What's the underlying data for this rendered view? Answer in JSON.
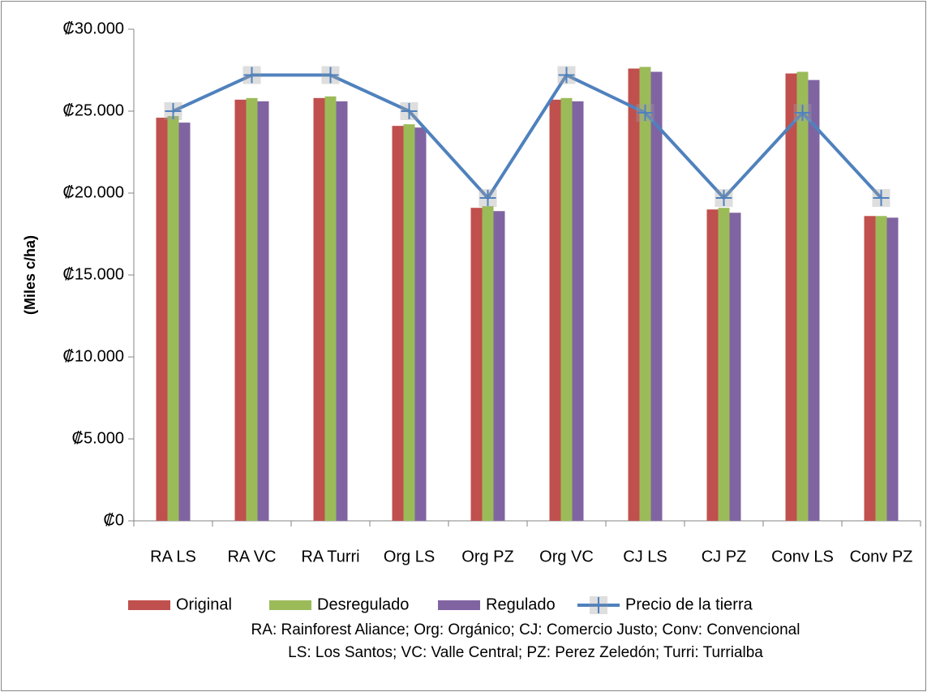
{
  "chart_data": {
    "type": "bar",
    "y_axis_label": "(Miles c/ha)",
    "categories": [
      "RA LS",
      "RA VC",
      "RA Turri",
      "Org LS",
      "Org PZ",
      "Org VC",
      "CJ LS",
      "CJ PZ",
      "Conv LS",
      "Conv PZ"
    ],
    "series": [
      {
        "name": "Original",
        "color": "#c0504d",
        "type": "bar",
        "values": [
          24600,
          25700,
          25800,
          24100,
          19100,
          25700,
          27600,
          19000,
          27300,
          18600
        ]
      },
      {
        "name": "Desregulado",
        "color": "#9bbb59",
        "type": "bar",
        "values": [
          24700,
          25800,
          25900,
          24200,
          19200,
          25800,
          27700,
          19100,
          27400,
          18600
        ]
      },
      {
        "name": "Regulado",
        "color": "#8064a2",
        "type": "bar",
        "values": [
          24300,
          25600,
          25600,
          24000,
          18900,
          25600,
          27400,
          18800,
          26900,
          18500
        ]
      },
      {
        "name": "Precio de la tierra",
        "color": "#4f81bd",
        "type": "line",
        "values": [
          25000,
          27200,
          27200,
          25000,
          19700,
          27200,
          24900,
          19700,
          24900,
          19700
        ]
      }
    ],
    "ylim": [
      0,
      30000
    ],
    "yticks": [
      {
        "value": 0,
        "label": "₡0"
      },
      {
        "value": 5000,
        "label": "₡5.000"
      },
      {
        "value": 10000,
        "label": "₡10.000"
      },
      {
        "value": 15000,
        "label": "₡15.000"
      },
      {
        "value": 20000,
        "label": "₡20.000"
      },
      {
        "value": 25000,
        "label": "₡25.000"
      },
      {
        "value": 30000,
        "label": "₡30.000"
      }
    ],
    "grid": false,
    "legend": "bottom",
    "annotations": [
      "RA: Rainforest Aliance; Org: Orgánico; CJ: Comercio Justo; Conv: Convencional",
      "LS: Los Santos;  VC: Valle Central; PZ: Perez Zeledón; Turri: Turrialba"
    ]
  }
}
